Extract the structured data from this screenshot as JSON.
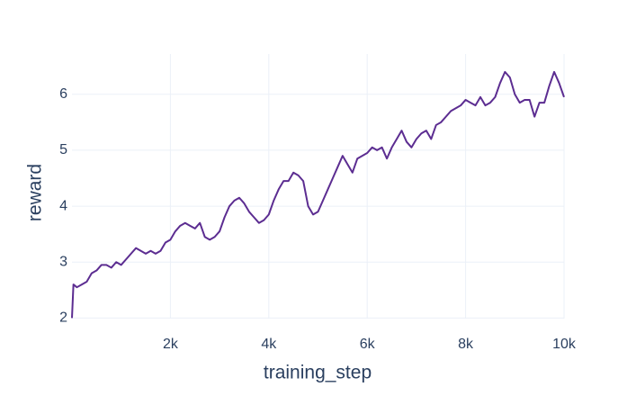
{
  "chart_data": {
    "type": "line",
    "x_label": "training_step",
    "y_label": "reward",
    "x": [
      0,
      30,
      100,
      200,
      300,
      400,
      500,
      600,
      700,
      800,
      900,
      1000,
      1100,
      1200,
      1300,
      1400,
      1500,
      1600,
      1700,
      1800,
      1900,
      2000,
      2100,
      2200,
      2300,
      2400,
      2500,
      2600,
      2700,
      2800,
      2900,
      3000,
      3100,
      3200,
      3300,
      3400,
      3500,
      3600,
      3700,
      3800,
      3900,
      4000,
      4100,
      4200,
      4300,
      4400,
      4500,
      4600,
      4700,
      4800,
      4900,
      5000,
      5100,
      5200,
      5300,
      5400,
      5500,
      5600,
      5700,
      5800,
      5900,
      6000,
      6100,
      6200,
      6300,
      6400,
      6500,
      6600,
      6700,
      6800,
      6900,
      7000,
      7100,
      7200,
      7300,
      7400,
      7500,
      7600,
      7700,
      7800,
      7900,
      8000,
      8100,
      8200,
      8300,
      8400,
      8500,
      8600,
      8700,
      8800,
      8900,
      9000,
      9100,
      9200,
      9300,
      9400,
      9500,
      9600,
      9700,
      9800,
      9900,
      10000
    ],
    "series": [
      {
        "name": "reward",
        "color": "#5c2d91",
        "values": [
          2.0,
          2.6,
          2.55,
          2.6,
          2.65,
          2.8,
          2.85,
          2.95,
          2.95,
          2.9,
          3.0,
          2.95,
          3.05,
          3.15,
          3.25,
          3.2,
          3.15,
          3.2,
          3.15,
          3.2,
          3.35,
          3.4,
          3.55,
          3.65,
          3.7,
          3.65,
          3.6,
          3.7,
          3.45,
          3.4,
          3.45,
          3.55,
          3.8,
          4.0,
          4.1,
          4.15,
          4.05,
          3.9,
          3.8,
          3.7,
          3.75,
          3.85,
          4.1,
          4.3,
          4.45,
          4.45,
          4.6,
          4.55,
          4.45,
          4.0,
          3.85,
          3.9,
          4.1,
          4.3,
          4.5,
          4.7,
          4.9,
          4.75,
          4.6,
          4.85,
          4.9,
          4.95,
          5.05,
          5.0,
          5.05,
          4.85,
          5.05,
          5.2,
          5.35,
          5.15,
          5.05,
          5.2,
          5.3,
          5.35,
          5.2,
          5.45,
          5.5,
          5.6,
          5.7,
          5.75,
          5.8,
          5.9,
          5.85,
          5.8,
          5.95,
          5.8,
          5.85,
          5.95,
          6.2,
          6.4,
          6.3,
          6.0,
          5.85,
          5.9,
          5.9,
          5.6,
          5.85,
          5.85,
          6.15,
          6.4,
          6.2,
          5.95
        ]
      }
    ],
    "xlim": [
      0,
      10000
    ],
    "xticks": [
      {
        "value": 2000,
        "label": "2k"
      },
      {
        "value": 4000,
        "label": "4k"
      },
      {
        "value": 6000,
        "label": "6k"
      },
      {
        "value": 8000,
        "label": "8k"
      },
      {
        "value": 10000,
        "label": "10k"
      }
    ],
    "ylim": [
      1.99,
      6.72
    ],
    "yticks": [
      2,
      3,
      4,
      5,
      6
    ],
    "grid": true
  }
}
